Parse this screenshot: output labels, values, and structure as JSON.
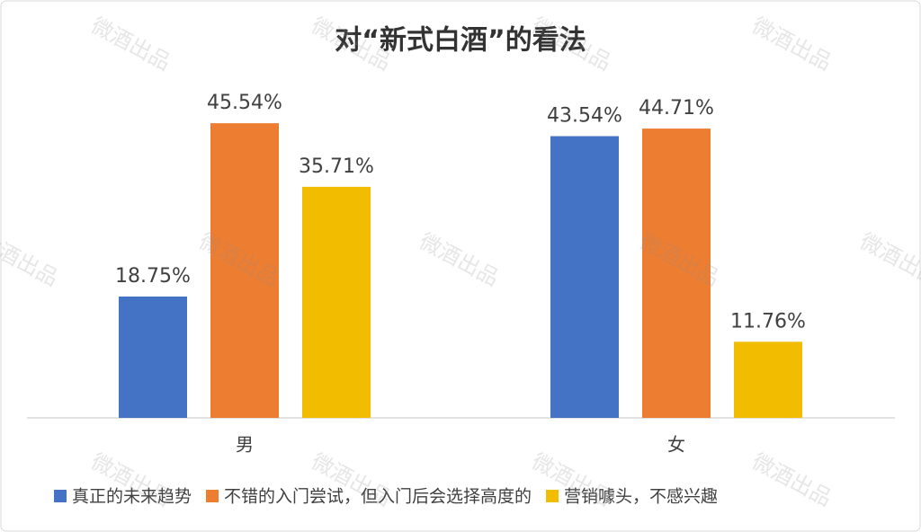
{
  "chart_data": {
    "type": "bar",
    "title": "对“新式白酒”的看法",
    "categories": [
      "男",
      "女"
    ],
    "series": [
      {
        "name": "真正的未来趋势",
        "color": "#4472c4",
        "values": [
          18.75,
          43.54
        ],
        "value_labels": [
          "18.75%",
          "43.54%"
        ]
      },
      {
        "name": "不错的入门尝试，但入门后会选择高度的",
        "color": "#ed7d31",
        "values": [
          45.54,
          44.71
        ],
        "value_labels": [
          "45.54%",
          "44.71%"
        ]
      },
      {
        "name": "营销噱头，不感兴趣",
        "color": "#f2bc00",
        "values": [
          35.71,
          11.76
        ],
        "value_labels": [
          "35.71%",
          "11.76%"
        ]
      }
    ],
    "legend": "bottom",
    "watermark": "微酒出品"
  }
}
